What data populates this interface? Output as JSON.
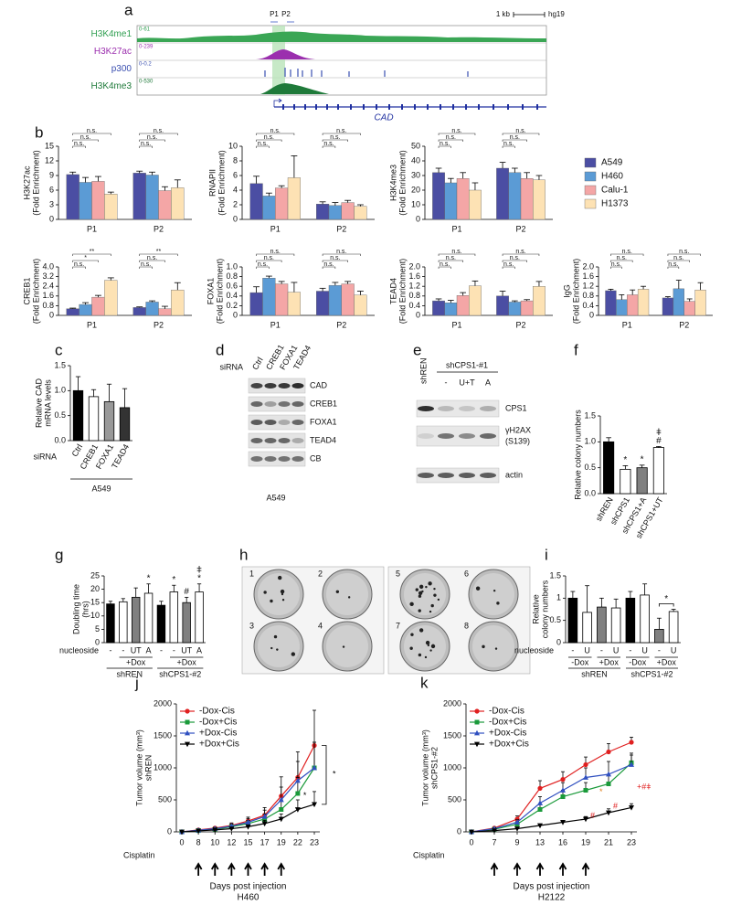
{
  "panel_labels": [
    "a",
    "b",
    "c",
    "d",
    "e",
    "f",
    "g",
    "h",
    "i",
    "j",
    "k"
  ],
  "tracks": {
    "promoters": [
      "P1",
      "P2"
    ],
    "scale": "1 kb",
    "genome": "hg19",
    "gene": "CAD",
    "rows": [
      {
        "name": "H3K4me1",
        "range": "0-61",
        "color": "#2e9e4f"
      },
      {
        "name": "H3K27ac",
        "range": "0-239",
        "color": "#9b2fae"
      },
      {
        "name": "p300",
        "range": "0-0.2",
        "color": "#3a4fb0"
      },
      {
        "name": "H3K4me3",
        "range": "0-530",
        "color": "#1f7a3a"
      }
    ]
  },
  "blots": {
    "d": {
      "treatment": "siRNA",
      "lanes": [
        "Ctrl",
        "CREB1",
        "FOXA1",
        "TEAD4"
      ],
      "bands": [
        "CAD",
        "CREB1",
        "FOXA1",
        "TEAD4",
        "CB"
      ],
      "cell_line": "A549"
    },
    "e": {
      "lanes": [
        "shREN",
        "shCPS1-#1"
      ],
      "nucleosides": [
        "-",
        "U+T",
        "A"
      ],
      "bands": [
        [
          "CPS1"
        ],
        [
          "γH2AX",
          "(S139)"
        ],
        [
          "actin"
        ]
      ]
    }
  },
  "plates": {
    "numbers": [
      "1",
      "2",
      "3",
      "4",
      "5",
      "6",
      "7",
      "8"
    ]
  },
  "chart_data": [
    {
      "type": "bar",
      "ylabel": [
        "H3K27ac",
        "(Fold Enrichment)"
      ],
      "categories": [
        "P1",
        "P2"
      ],
      "ylim": [
        0,
        15
      ],
      "yticks": [
        0,
        3,
        6,
        9,
        12,
        15
      ],
      "series": [
        {
          "color": "#4b4ea3",
          "values": [
            9.2,
            9.5
          ],
          "errors": [
            0.5,
            0.4
          ]
        },
        {
          "color": "#5b9bd5",
          "values": [
            7.6,
            9.1
          ],
          "errors": [
            1.0,
            0.6
          ]
        },
        {
          "color": "#f4a6a6",
          "values": [
            7.8,
            5.9
          ],
          "errors": [
            1.0,
            0.8
          ]
        },
        {
          "color": "#fde2b4",
          "values": [
            5.2,
            6.5
          ],
          "errors": [
            0.4,
            1.6
          ]
        }
      ],
      "significance": [
        [
          "n.s.",
          "n.s.",
          "n.s."
        ],
        [
          "n.s.",
          "n.s.",
          "n.s."
        ]
      ]
    },
    {
      "type": "bar",
      "ylabel": [
        "RNAPII",
        "(Fold Enrichment)"
      ],
      "categories": [
        "P1",
        "P2"
      ],
      "ylim": [
        0,
        10
      ],
      "yticks": [
        0,
        2,
        4,
        6,
        8,
        10
      ],
      "series": [
        {
          "color": "#4b4ea3",
          "values": [
            4.9,
            2.1
          ],
          "errors": [
            1.0,
            0.3
          ]
        },
        {
          "color": "#5b9bd5",
          "values": [
            3.2,
            1.9
          ],
          "errors": [
            0.4,
            0.4
          ]
        },
        {
          "color": "#f4a6a6",
          "values": [
            4.3,
            2.3
          ],
          "errors": [
            0.3,
            0.3
          ]
        },
        {
          "color": "#fde2b4",
          "values": [
            5.7,
            1.8
          ],
          "errors": [
            3.0,
            0.2
          ]
        }
      ],
      "significance": [
        [
          "n.s.",
          "n.s.",
          "n.s."
        ],
        [
          "n.s.",
          "n.s.",
          "n.s."
        ]
      ]
    },
    {
      "type": "bar",
      "ylabel": [
        "H3K4me3",
        "(Fold Enrichment)"
      ],
      "categories": [
        "P1",
        "P2"
      ],
      "ylim": [
        0,
        50
      ],
      "yticks": [
        0,
        10,
        20,
        30,
        40,
        50
      ],
      "series": [
        {
          "name": "A549",
          "color": "#4b4ea3",
          "values": [
            32,
            35
          ],
          "errors": [
            3,
            4
          ]
        },
        {
          "name": "H460",
          "color": "#5b9bd5",
          "values": [
            25,
            32
          ],
          "errors": [
            3,
            3
          ]
        },
        {
          "name": "Calu-1",
          "color": "#f4a6a6",
          "values": [
            28,
            28
          ],
          "errors": [
            4,
            4
          ]
        },
        {
          "name": "H1373",
          "color": "#fde2b4",
          "values": [
            20,
            27
          ],
          "errors": [
            5,
            3
          ]
        }
      ],
      "significance": [
        [
          "n.s.",
          "n.s.",
          "n.s."
        ],
        [
          "n.s.",
          "n.s.",
          "n.s."
        ]
      ]
    },
    {
      "type": "bar",
      "ylabel": [
        "CREB1",
        "(Fold Enrichment)"
      ],
      "categories": [
        "P1",
        "P2"
      ],
      "ylim": [
        0,
        4
      ],
      "yticks": [
        0,
        0.8,
        1.6,
        2.4,
        3.2,
        {
          "value": 4,
          "label": "4.0"
        }
      ],
      "series": [
        {
          "color": "#4b4ea3",
          "values": [
            0.55,
            0.65
          ],
          "errors": [
            0.05,
            0.05
          ]
        },
        {
          "color": "#5b9bd5",
          "values": [
            0.9,
            1.1
          ],
          "errors": [
            0.15,
            0.1
          ]
        },
        {
          "color": "#f4a6a6",
          "values": [
            1.5,
            0.55
          ],
          "errors": [
            0.15,
            0.2
          ]
        },
        {
          "color": "#fde2b4",
          "values": [
            2.9,
            2.1
          ],
          "errors": [
            0.2,
            0.6
          ]
        }
      ],
      "significance": [
        [
          "n.s.",
          "*",
          "**"
        ],
        [
          "n.s.",
          "n.s.",
          "**"
        ]
      ]
    },
    {
      "type": "bar",
      "ylabel": [
        "FOXA1",
        "(Fold Enrichment)"
      ],
      "categories": [
        "P1",
        "P2"
      ],
      "ylim": [
        0,
        1
      ],
      "yticks": [
        0,
        0.2,
        0.4,
        0.6,
        0.8,
        {
          "value": 1,
          "label": "1.0"
        }
      ],
      "series": [
        {
          "color": "#4b4ea3",
          "values": [
            0.47,
            0.5
          ],
          "errors": [
            0.12,
            0.06
          ]
        },
        {
          "color": "#5b9bd5",
          "values": [
            0.77,
            0.62
          ],
          "errors": [
            0.04,
            0.06
          ]
        },
        {
          "color": "#f4a6a6",
          "values": [
            0.65,
            0.65
          ],
          "errors": [
            0.05,
            0.05
          ]
        },
        {
          "color": "#fde2b4",
          "values": [
            0.48,
            0.42
          ],
          "errors": [
            0.2,
            0.08
          ]
        }
      ],
      "significance": [
        [
          "n.s.",
          "n.s.",
          "n.s."
        ],
        [
          "n.s.",
          "n.s.",
          "n.s."
        ]
      ]
    },
    {
      "type": "bar",
      "ylabel": [
        "TEAD4",
        "(Fold Enrichment)"
      ],
      "categories": [
        "P1",
        "P2"
      ],
      "ylim": [
        0,
        2
      ],
      "yticks": [
        0,
        0.4,
        0.8,
        1.2,
        1.6,
        {
          "value": 2,
          "label": "2.0"
        }
      ],
      "series": [
        {
          "color": "#4b4ea3",
          "values": [
            0.6,
            0.8
          ],
          "errors": [
            0.08,
            0.2
          ]
        },
        {
          "color": "#5b9bd5",
          "values": [
            0.52,
            0.55
          ],
          "errors": [
            0.1,
            0.05
          ]
        },
        {
          "color": "#f4a6a6",
          "values": [
            0.82,
            0.6
          ],
          "errors": [
            0.12,
            0.05
          ]
        },
        {
          "color": "#fde2b4",
          "values": [
            1.22,
            1.2
          ],
          "errors": [
            0.2,
            0.2
          ]
        }
      ],
      "significance": [
        [
          "n.s.",
          "n.s.",
          "n.s."
        ],
        [
          "n.s.",
          "n.s.",
          "n.s."
        ]
      ]
    },
    {
      "type": "bar",
      "ylabel": [
        "IgG",
        "(Fold Enrichment)"
      ],
      "categories": [
        "P1",
        "P2"
      ],
      "ylim": [
        0,
        2
      ],
      "yticks": [
        0,
        0.4,
        0.8,
        1.2,
        1.6,
        {
          "value": 2,
          "label": "2.0"
        }
      ],
      "series": [
        {
          "color": "#4b4ea3",
          "values": [
            1.02,
            0.72
          ],
          "errors": [
            0.06,
            0.05
          ]
        },
        {
          "color": "#5b9bd5",
          "values": [
            0.65,
            1.1
          ],
          "errors": [
            0.2,
            0.35
          ]
        },
        {
          "color": "#f4a6a6",
          "values": [
            0.85,
            0.58
          ],
          "errors": [
            0.2,
            0.1
          ]
        },
        {
          "color": "#fde2b4",
          "values": [
            1.08,
            1.05
          ],
          "errors": [
            0.12,
            0.3
          ]
        }
      ],
      "significance": [
        [
          "n.s.",
          "n.s.",
          "n.s."
        ],
        [
          "n.s.",
          "n.s.",
          "n.s."
        ]
      ]
    },
    {
      "type": "bar",
      "ylabel": [
        "Relative CAD",
        "mRNA levels"
      ],
      "categories": [
        "Ctrl",
        "CREB1",
        "FOXA1",
        "TEAD4"
      ],
      "xtitle": "siRNA",
      "group": "A549",
      "values": [
        1,
        0.88,
        0.78,
        0.66
      ],
      "errors": [
        0.28,
        0.14,
        0.35,
        0.38
      ],
      "colors": [
        "#000000",
        "#ffffff",
        "#999999",
        "#333333"
      ],
      "ylim": [
        0,
        1.5
      ],
      "yticks": [
        {
          "value": 0,
          "label": "0.0"
        },
        0.5,
        {
          "value": 1,
          "label": "1.0"
        },
        1.5
      ]
    },
    {
      "type": "bar",
      "ylabel": [
        "Relative colony numbers"
      ],
      "categories": [
        "shREN",
        "shCPS1",
        "shCPS1+A",
        "shCPS1+UT"
      ],
      "values": [
        1,
        0.47,
        0.5,
        0.89
      ],
      "errors": [
        0.08,
        0.07,
        0.05,
        0.02
      ],
      "colors": [
        "#000000",
        "#ffffff",
        "#808080",
        "#ffffff"
      ],
      "marks": [
        [],
        [
          "*"
        ],
        [
          "*"
        ],
        [
          "#",
          "ǂ"
        ]
      ],
      "ylim": [
        0,
        1.5
      ],
      "yticks": [
        {
          "value": 0,
          "label": "0.0"
        },
        0.5,
        {
          "value": 1,
          "label": "1.0"
        },
        1.5
      ]
    },
    {
      "type": "bar",
      "ylabel": [
        "Doubling time",
        "(hrs)"
      ],
      "categories": [
        "-",
        "-",
        "UT",
        "A",
        "-",
        "-",
        "UT",
        "A"
      ],
      "xtitle": "nucleoside",
      "groups": [
        "+Dox",
        "+Dox"
      ],
      "supergroups": [
        "shREN",
        "shCPS1-#2"
      ],
      "values": [
        14.5,
        15.3,
        17,
        18.5,
        14,
        19,
        15,
        19
      ],
      "errors": [
        1,
        1.2,
        3.5,
        3.5,
        1.5,
        2.5,
        2,
        3
      ],
      "colors": [
        "#000000",
        "#ffffff",
        "#808080",
        "#ffffff",
        "#000000",
        "#ffffff",
        "#808080",
        "#ffffff"
      ],
      "marks": [
        [],
        [],
        [],
        [
          "*"
        ],
        [],
        [
          "*"
        ],
        [
          "#"
        ],
        [
          "*",
          "ǂ"
        ]
      ],
      "ylim": [
        0,
        25
      ],
      "yticks": [
        0,
        5,
        10,
        15,
        20,
        25
      ]
    },
    {
      "type": "bar",
      "ylabel": [
        "Relative",
        "colony numbers"
      ],
      "categories": [
        "-",
        "U",
        "-",
        "U",
        "-",
        "U",
        "-",
        "U"
      ],
      "xtitle": "nucleoside",
      "groups": [
        "-Dox",
        "+Dox",
        "-Dox",
        "+Dox"
      ],
      "supergroups": [
        "shREN",
        "shCPS1-#2"
      ],
      "values": [
        1,
        0.68,
        0.8,
        0.78,
        1,
        1.07,
        0.3,
        0.7
      ],
      "errors": [
        0.15,
        0.6,
        0.2,
        0.2,
        0.15,
        0.25,
        0.25,
        0.05
      ],
      "colors": [
        "#000000",
        "#ffffff",
        "#808080",
        "#ffffff",
        "#000000",
        "#ffffff",
        "#808080",
        "#ffffff"
      ],
      "bracket": "*",
      "ylim": [
        0,
        1.5
      ],
      "yticks": [
        0,
        0.5,
        1,
        1.5
      ]
    },
    {
      "type": "line",
      "ylabel": [
        "Tumor volume (mm³)",
        "shREN"
      ],
      "categories": [
        "0",
        "8",
        "10",
        "12",
        "15",
        "17",
        "19",
        "22",
        "23"
      ],
      "xlabel": "Days post injection",
      "treatment": "Cisplatin",
      "cell_line": "H460",
      "legend": "upper left",
      "ylim": [
        0,
        2000
      ],
      "yticks": [
        0,
        500,
        1000,
        1500,
        2000
      ],
      "series": [
        {
          "name": "-Dox-Cis",
          "color": "#e02020",
          "marker": "circle",
          "values": [
            0,
            30,
            60,
            100,
            170,
            260,
            560,
            850,
            1350
          ],
          "errors": [
            0,
            10,
            20,
            40,
            60,
            120,
            300,
            400,
            550
          ]
        },
        {
          "name": "-Dox+Cis",
          "color": "#1a9a3a",
          "marker": "square",
          "values": [
            0,
            20,
            40,
            80,
            130,
            200,
            350,
            600,
            1000
          ],
          "errors": [
            0,
            10,
            15,
            30,
            50,
            80,
            150,
            250,
            400
          ]
        },
        {
          "name": "+Dox-Cis",
          "color": "#3050c0",
          "marker": "triangle",
          "values": [
            0,
            25,
            50,
            90,
            150,
            240,
            500,
            800,
            1000
          ],
          "errors": [
            0,
            10,
            20,
            35,
            60,
            100,
            200,
            300,
            400
          ]
        },
        {
          "name": "+Dox+Cis",
          "color": "#000000",
          "marker": "triangle-down",
          "values": [
            0,
            15,
            30,
            50,
            80,
            130,
            200,
            350,
            430
          ],
          "errors": [
            0,
            5,
            10,
            20,
            30,
            50,
            80,
            150,
            200
          ]
        }
      ],
      "annotations": [
        "*",
        "*"
      ]
    },
    {
      "type": "line",
      "ylabel": [
        "Tumor volume (mm³)",
        "shCPS1-#2"
      ],
      "categories": [
        "0",
        "7",
        "9",
        "13",
        "16",
        "19",
        "21",
        "23"
      ],
      "xlabel": "Days post injection",
      "treatment": "Cisplatin",
      "cell_line": "H2122",
      "legend": "upper left",
      "ylim": [
        0,
        2000
      ],
      "yticks": [
        0,
        500,
        1000,
        1500,
        2000
      ],
      "series": [
        {
          "name": "-Dox-Cis",
          "color": "#e02020",
          "marker": "circle",
          "values": [
            0,
            60,
            200,
            680,
            820,
            1050,
            1250,
            1400
          ],
          "errors": [
            0,
            20,
            50,
            120,
            120,
            120,
            130,
            80
          ]
        },
        {
          "name": "-Dox+Cis",
          "color": "#1a9a3a",
          "marker": "square",
          "values": [
            0,
            40,
            120,
            350,
            550,
            650,
            750,
            1080
          ],
          "errors": [
            0,
            15,
            40,
            80,
            100,
            120,
            130,
            150
          ]
        },
        {
          "name": "+Dox-Cis",
          "color": "#3050c0",
          "marker": "triangle",
          "values": [
            0,
            50,
            150,
            450,
            650,
            850,
            900,
            1050
          ],
          "errors": [
            0,
            15,
            40,
            100,
            120,
            150,
            200,
            150
          ]
        },
        {
          "name": "+Dox+Cis",
          "color": "#000000",
          "marker": "triangle-down",
          "values": [
            0,
            20,
            50,
            100,
            150,
            200,
            300,
            380
          ],
          "errors": [
            0,
            5,
            10,
            20,
            30,
            40,
            60,
            60
          ]
        }
      ],
      "annotations": [
        "#",
        "#",
        "*",
        "+#ǂ"
      ]
    }
  ]
}
